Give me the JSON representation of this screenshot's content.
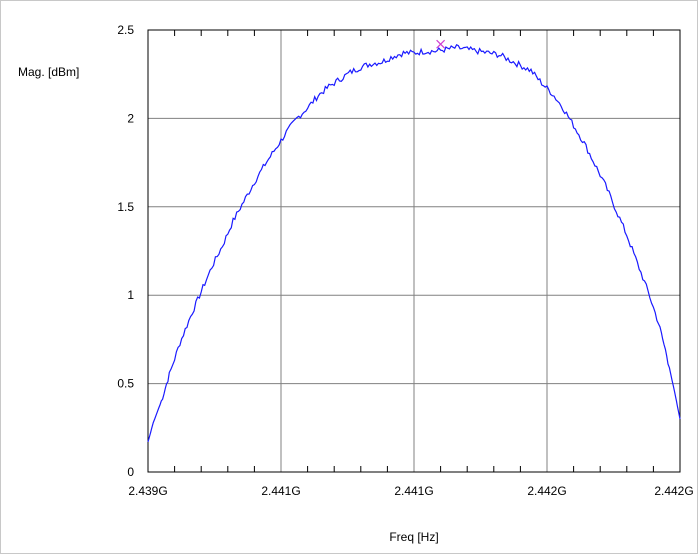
{
  "chart_data": {
    "type": "line",
    "ylabel": "Mag. [dBm]",
    "xlabel": "Freq [Hz]",
    "ylim": [
      0,
      2.5
    ],
    "yticks": [
      "0",
      "0.5",
      "1",
      "1.5",
      "2",
      "2.5"
    ],
    "xtick_labels": [
      "2.439G",
      "2.441G",
      "2.441G",
      "2.442G",
      "2.442G"
    ],
    "grid": true,
    "series": [
      {
        "color": "#1a1aff",
        "points": [
          [
            0.0,
            0.17
          ],
          [
            0.01,
            0.28
          ],
          [
            0.025,
            0.4
          ],
          [
            0.04,
            0.55
          ],
          [
            0.06,
            0.73
          ],
          [
            0.08,
            0.88
          ],
          [
            0.1,
            1.02
          ],
          [
            0.12,
            1.16
          ],
          [
            0.14,
            1.28
          ],
          [
            0.16,
            1.42
          ],
          [
            0.18,
            1.53
          ],
          [
            0.2,
            1.64
          ],
          [
            0.22,
            1.74
          ],
          [
            0.24,
            1.83
          ],
          [
            0.26,
            1.92
          ],
          [
            0.28,
            2.0
          ],
          [
            0.3,
            2.06
          ],
          [
            0.32,
            2.13
          ],
          [
            0.34,
            2.18
          ],
          [
            0.36,
            2.22
          ],
          [
            0.38,
            2.26
          ],
          [
            0.4,
            2.29
          ],
          [
            0.42,
            2.31
          ],
          [
            0.44,
            2.32
          ],
          [
            0.46,
            2.35
          ],
          [
            0.48,
            2.37
          ],
          [
            0.5,
            2.37
          ],
          [
            0.52,
            2.38
          ],
          [
            0.54,
            2.38
          ],
          [
            0.56,
            2.39
          ],
          [
            0.58,
            2.4
          ],
          [
            0.6,
            2.39
          ],
          [
            0.62,
            2.38
          ],
          [
            0.64,
            2.37
          ],
          [
            0.66,
            2.36
          ],
          [
            0.68,
            2.33
          ],
          [
            0.7,
            2.3
          ],
          [
            0.72,
            2.27
          ],
          [
            0.74,
            2.2
          ],
          [
            0.76,
            2.14
          ],
          [
            0.78,
            2.06
          ],
          [
            0.8,
            1.96
          ],
          [
            0.82,
            1.86
          ],
          [
            0.84,
            1.74
          ],
          [
            0.86,
            1.62
          ],
          [
            0.88,
            1.48
          ],
          [
            0.9,
            1.34
          ],
          [
            0.92,
            1.18
          ],
          [
            0.94,
            1.02
          ],
          [
            0.96,
            0.84
          ],
          [
            0.975,
            0.66
          ],
          [
            0.99,
            0.45
          ],
          [
            1.0,
            0.3
          ]
        ]
      }
    ],
    "marker": {
      "x": 0.55,
      "y": 2.42,
      "symbol": "x",
      "color": "#d03cd0"
    }
  }
}
